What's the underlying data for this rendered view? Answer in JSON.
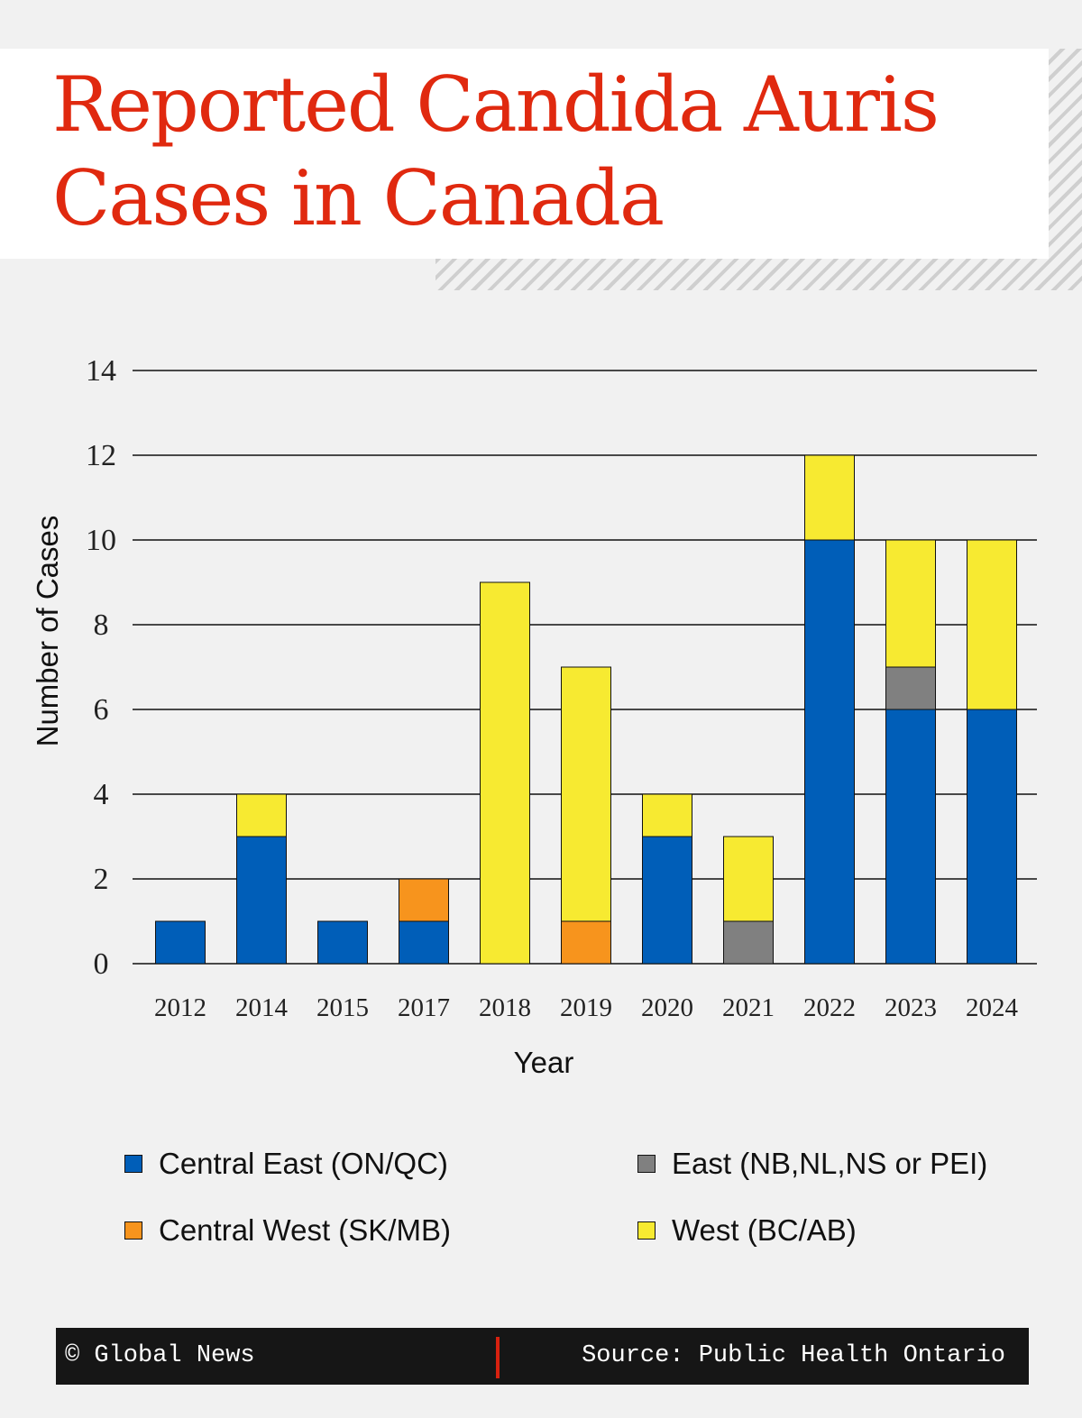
{
  "title": "Reported Candida Auris Cases in Canada",
  "footer": {
    "credit": "© Global News",
    "source": "Source: Public Health Ontario"
  },
  "chart_data": {
    "type": "bar",
    "stacked": true,
    "title": "Reported Candida Auris Cases in Canada",
    "xlabel": "Year",
    "ylabel": "Number of Cases",
    "ylim": [
      0,
      14
    ],
    "yticks": [
      0,
      2,
      4,
      6,
      8,
      10,
      12,
      14
    ],
    "grid": true,
    "legend_position": "bottom",
    "categories": [
      "2012",
      "2014",
      "2015",
      "2017",
      "2018",
      "2019",
      "2020",
      "2021",
      "2022",
      "2023",
      "2024"
    ],
    "series": [
      {
        "name": "Central East (ON/QC)",
        "color": "#005eb8",
        "values": [
          1,
          3,
          1,
          1,
          0,
          0,
          3,
          0,
          10,
          6,
          6
        ]
      },
      {
        "name": "Central West (SK/MB)",
        "color": "#f7941d",
        "values": [
          0,
          0,
          0,
          1,
          0,
          1,
          0,
          0,
          0,
          0,
          0
        ]
      },
      {
        "name": "East (NB,NL,NS or PEI)",
        "color": "#808080",
        "values": [
          0,
          0,
          0,
          0,
          0,
          0,
          0,
          1,
          0,
          1,
          0
        ]
      },
      {
        "name": "West (BC/AB)",
        "color": "#f7ea31",
        "values": [
          0,
          1,
          0,
          0,
          9,
          6,
          1,
          2,
          2,
          3,
          4
        ]
      }
    ]
  }
}
